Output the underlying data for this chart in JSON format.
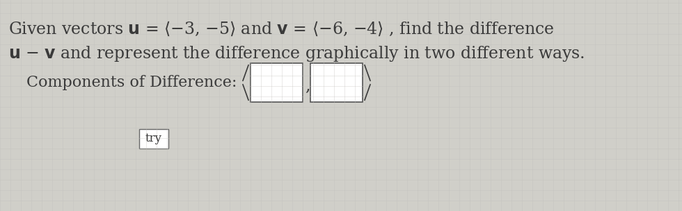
{
  "background_color": "#d0cfc9",
  "grid_color": "#c8c7c1",
  "text_color": "#3a3a3a",
  "line1": "Given vectors $\\mathbf{u}$ = $\\langle$$-$3, $-$5$\\rangle$ and $\\mathbf{v}$ = $\\langle$$-$6, $-$4$\\rangle$ , find the difference",
  "line2": "$\\mathbf{u}$ $-$ $\\mathbf{v}$ and represent the difference graphically in two different ways.",
  "components_label": "Components of Difference: ",
  "try_label": "try",
  "font_size_main": 17,
  "font_size_label": 16,
  "font_size_try": 12
}
